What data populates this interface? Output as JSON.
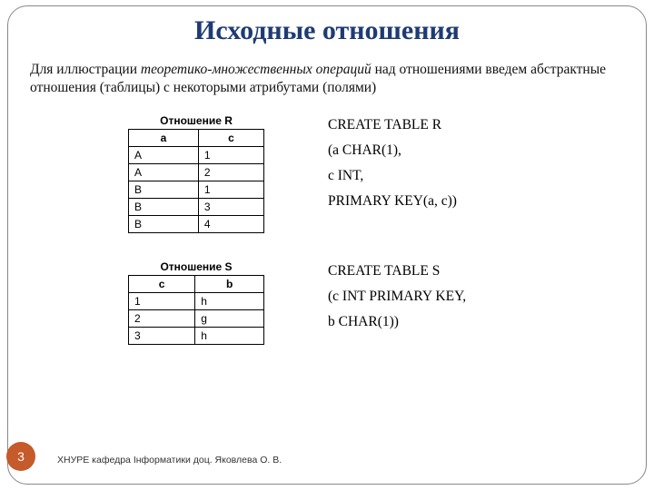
{
  "title": "Исходные отношения",
  "intro": {
    "pre": "Для иллюстрации ",
    "em": "теоретико-множественных операций",
    "post": " над отношениями введем абстрактные отношения (таблицы) с некоторыми атрибутами (полями)"
  },
  "tableR": {
    "caption": "Отношение R",
    "columns": [
      "a",
      "c"
    ],
    "rows": [
      [
        "A",
        "1"
      ],
      [
        "A",
        "2"
      ],
      [
        "B",
        "1"
      ],
      [
        "B",
        "3"
      ],
      [
        "B",
        "4"
      ]
    ]
  },
  "sqlR": {
    "l1": "CREATE TABLE R",
    "l2": "(a CHAR(1),",
    "l3": " c INT,",
    "l4": "PRIMARY KEY(a, c))"
  },
  "tableS": {
    "caption": "Отношение S",
    "columns": [
      "c",
      "b"
    ],
    "rows": [
      [
        "1",
        "h"
      ],
      [
        "2",
        "g"
      ],
      [
        "3",
        "h"
      ]
    ]
  },
  "sqlS": {
    "l1": "CREATE TABLE S",
    "l2": "(c INT PRIMARY KEY,",
    "l3": " b CHAR(1))"
  },
  "pagenum": "3",
  "footer": "ХНУРЕ кафедра Інформатики доц. Яковлева О. В.",
  "colors": {
    "title": "#1f3b73",
    "pagenum_bg": "#c55a2b",
    "frame_border": "#888888"
  }
}
